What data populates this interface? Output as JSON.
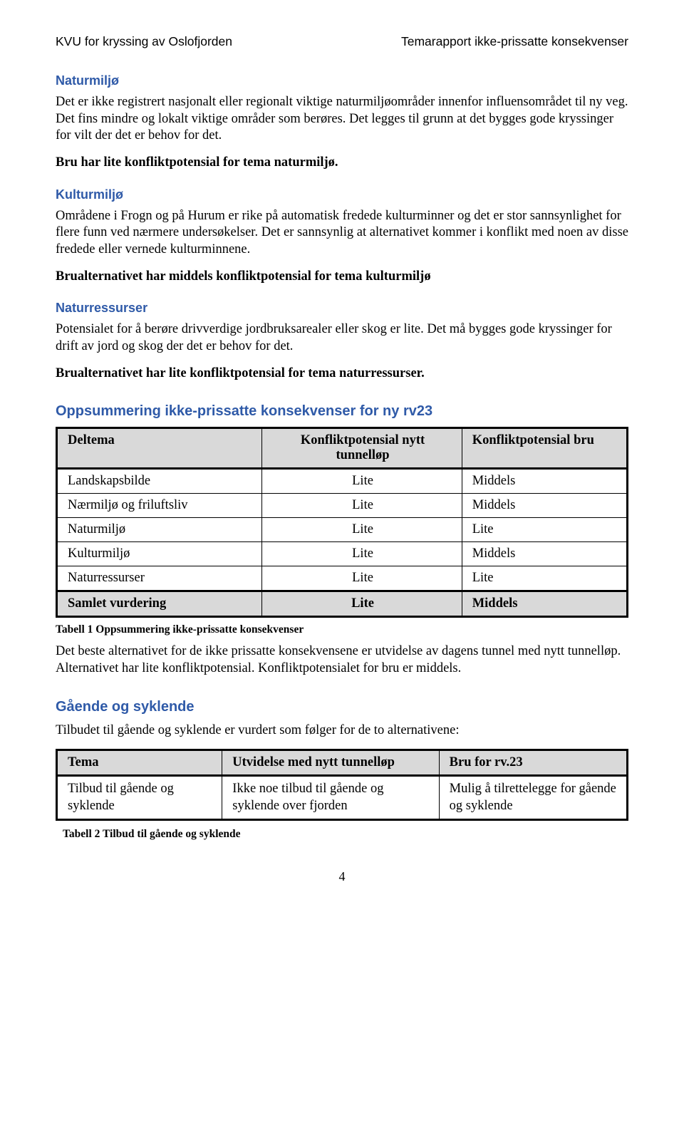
{
  "header": {
    "left": "KVU for kryssing av Oslofjorden",
    "right": "Temarapport ikke-prissatte konsekvenser"
  },
  "sections": {
    "naturmiljo": {
      "title": "Naturmiljø",
      "p1": "Det er ikke registrert nasjonalt eller regionalt viktige naturmiljøområder innenfor influensområdet til ny veg. Det fins mindre og lokalt viktige områder som berøres. Det legges til grunn at det bygges gode kryssinger for vilt der det er behov for det.",
      "bold": "Bru har lite konfliktpotensial for tema naturmiljø."
    },
    "kulturmiljo": {
      "title": "Kulturmiljø",
      "p1": "Områdene i Frogn og på Hurum er rike på automatisk fredede kulturminner og det er stor sannsynlighet for flere funn ved nærmere undersøkelser. Det er sannsynlig at alternativet kommer i konflikt med noen av disse fredede eller vernede kulturminnene.",
      "bold": "Brualternativet har middels konfliktpotensial for tema kulturmiljø"
    },
    "naturressurser": {
      "title": "Naturressurser",
      "p1": "Potensialet for å berøre drivverdige jordbruksarealer eller skog er lite. Det må bygges gode kryssinger for drift av jord og skog der det er behov for det.",
      "bold": "Brualternativet har lite konfliktpotensial for tema naturressurser."
    },
    "opps": {
      "title": "Oppsummering ikke-prissatte konsekvenser for ny rv23"
    },
    "gaende": {
      "title": "Gående og syklende",
      "p1": "Tilbudet til gående og syklende er vurdert som følger for de to alternativene:"
    }
  },
  "table1": {
    "header": {
      "col1": "Deltema",
      "col2": "Konfliktpotensial nytt tunnelløp",
      "col3": "Konfliktpotensial bru"
    },
    "rows": [
      {
        "a": "Landskapsbilde",
        "b": "Lite",
        "c": "Middels"
      },
      {
        "a": "Nærmiljø og friluftsliv",
        "b": "Lite",
        "c": "Middels"
      },
      {
        "a": "Naturmiljø",
        "b": "Lite",
        "c": "Lite"
      },
      {
        "a": "Kulturmiljø",
        "b": "Lite",
        "c": "Middels"
      },
      {
        "a": "Naturressurser",
        "b": "Lite",
        "c": "Lite"
      }
    ],
    "summary": {
      "a": "Samlet vurdering",
      "b": "Lite",
      "c": "Middels"
    },
    "caption": "Tabell 1 Oppsummering ikke-prissatte konsekvenser",
    "after": "Det beste alternativet for de ikke prissatte konsekvensene er utvidelse av dagens tunnel med nytt tunnelløp. Alternativet har lite konfliktpotensial. Konfliktpotensialet for bru er middels."
  },
  "table2": {
    "header": {
      "col1": "Tema",
      "col2": "Utvidelse med nytt tunnelløp",
      "col3": "Bru for rv.23"
    },
    "row": {
      "a": "Tilbud til gående og syklende",
      "b": "Ikke noe tilbud til gående og syklende over fjorden",
      "c": "Mulig å tilrettelegge for gående og syklende"
    },
    "caption": "Tabell 2 Tilbud til gående og syklende"
  },
  "pagenum": "4"
}
